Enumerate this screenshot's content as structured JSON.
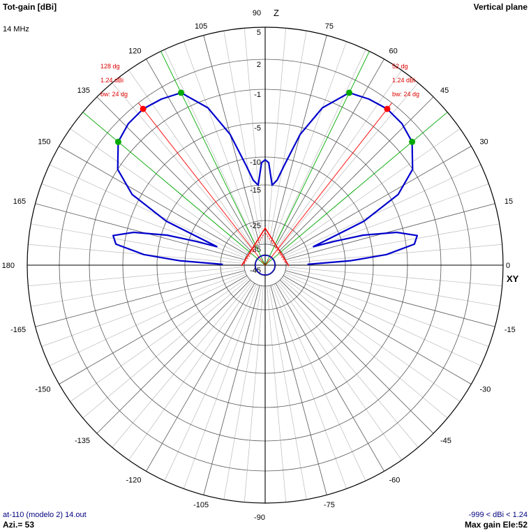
{
  "header": {
    "title": "Tot-gain [dBi]",
    "frequency": "14 MHz",
    "plane": "Vertical plane"
  },
  "footer": {
    "file": "at-110 (modelo 2) 14.out",
    "azimuth": "Azi.= 53",
    "range": "-999 < dBi < 1.24",
    "max_gain": "Max gain Ele:52"
  },
  "axes": {
    "z_label": "Z",
    "xy_label": "XY"
  },
  "colors": {
    "pattern": "#0000cc",
    "main_lobe": "#ff0000",
    "half_power": "#00aa00",
    "grid": "#555555",
    "grid_minor": "#bbbbbb",
    "text": "#000000",
    "footer_text": "#000080"
  },
  "annotations": {
    "left": {
      "angle": "128 dg",
      "gain": "1.24 dBi",
      "bw": "bw: 24 dg"
    },
    "right": {
      "angle": "52 dg",
      "gain": "1.24 dBi",
      "bw": "bw: 24 dg"
    }
  },
  "chart_data": {
    "type": "polar",
    "radial_unit": "dBi",
    "radial_ticks": [
      5,
      2,
      -1,
      -5,
      -10,
      -15,
      -25,
      -35,
      -45
    ],
    "angle_ticks": [
      0,
      15,
      30,
      45,
      60,
      75,
      90,
      105,
      120,
      135,
      150,
      165,
      180,
      -165,
      -150,
      -135,
      -120,
      -105,
      -90,
      -75,
      -60,
      -45,
      -30,
      -15
    ],
    "angle_tick_labels": [
      "0",
      "15",
      "30",
      "45",
      "60",
      "75",
      "90",
      "105",
      "120",
      "135",
      "150",
      "165",
      "180",
      "-165",
      "-150",
      "-135",
      "-120",
      "-105",
      "-90",
      "-75",
      "-60",
      "-45",
      "-30",
      "-15"
    ],
    "max_gain": 1.24,
    "max_gain_elevation": [
      52,
      128
    ],
    "half_power_elevations": [
      40,
      64,
      116,
      140
    ],
    "beamwidth": 24,
    "series": [
      {
        "points": [
          {
            "elev": 1,
            "gain": -26
          },
          {
            "elev": 3,
            "gain": -14
          },
          {
            "elev": 5,
            "gain": -8
          },
          {
            "elev": 8,
            "gain": -4
          },
          {
            "elev": 11,
            "gain": -3.5
          },
          {
            "elev": 14,
            "gain": -6
          },
          {
            "elev": 17,
            "gain": -11
          },
          {
            "elev": 19,
            "gain": -17
          },
          {
            "elev": 21,
            "gain": -23
          },
          {
            "elev": 24,
            "gain": -10
          },
          {
            "elev": 28,
            "gain": -4
          },
          {
            "elev": 33,
            "gain": -1
          },
          {
            "elev": 40,
            "gain": 0.6
          },
          {
            "elev": 46,
            "gain": 1.1
          },
          {
            "elev": 52,
            "gain": 1.24
          },
          {
            "elev": 58,
            "gain": 1.0
          },
          {
            "elev": 64,
            "gain": 0.6
          },
          {
            "elev": 70,
            "gain": -2
          },
          {
            "elev": 75,
            "gain": -6
          },
          {
            "elev": 79,
            "gain": -11
          },
          {
            "elev": 82,
            "gain": -14
          },
          {
            "elev": 85,
            "gain": -15
          },
          {
            "elev": 88,
            "gain": -11
          },
          {
            "elev": 90,
            "gain": -10.5
          },
          {
            "elev": 92,
            "gain": -11
          },
          {
            "elev": 95,
            "gain": -15
          },
          {
            "elev": 98,
            "gain": -14
          },
          {
            "elev": 101,
            "gain": -11
          },
          {
            "elev": 105,
            "gain": -6
          },
          {
            "elev": 110,
            "gain": -2
          },
          {
            "elev": 116,
            "gain": 0.6
          },
          {
            "elev": 122,
            "gain": 1.0
          },
          {
            "elev": 128,
            "gain": 1.24
          },
          {
            "elev": 134,
            "gain": 1.1
          },
          {
            "elev": 140,
            "gain": 0.6
          },
          {
            "elev": 147,
            "gain": -1
          },
          {
            "elev": 152,
            "gain": -4
          },
          {
            "elev": 156,
            "gain": -10
          },
          {
            "elev": 159,
            "gain": -23
          },
          {
            "elev": 161,
            "gain": -17
          },
          {
            "elev": 163,
            "gain": -11
          },
          {
            "elev": 166,
            "gain": -6
          },
          {
            "elev": 169,
            "gain": -3.5
          },
          {
            "elev": 172,
            "gain": -4
          },
          {
            "elev": 175,
            "gain": -8
          },
          {
            "elev": 177,
            "gain": -14
          },
          {
            "elev": 179,
            "gain": -26
          }
        ]
      }
    ]
  }
}
